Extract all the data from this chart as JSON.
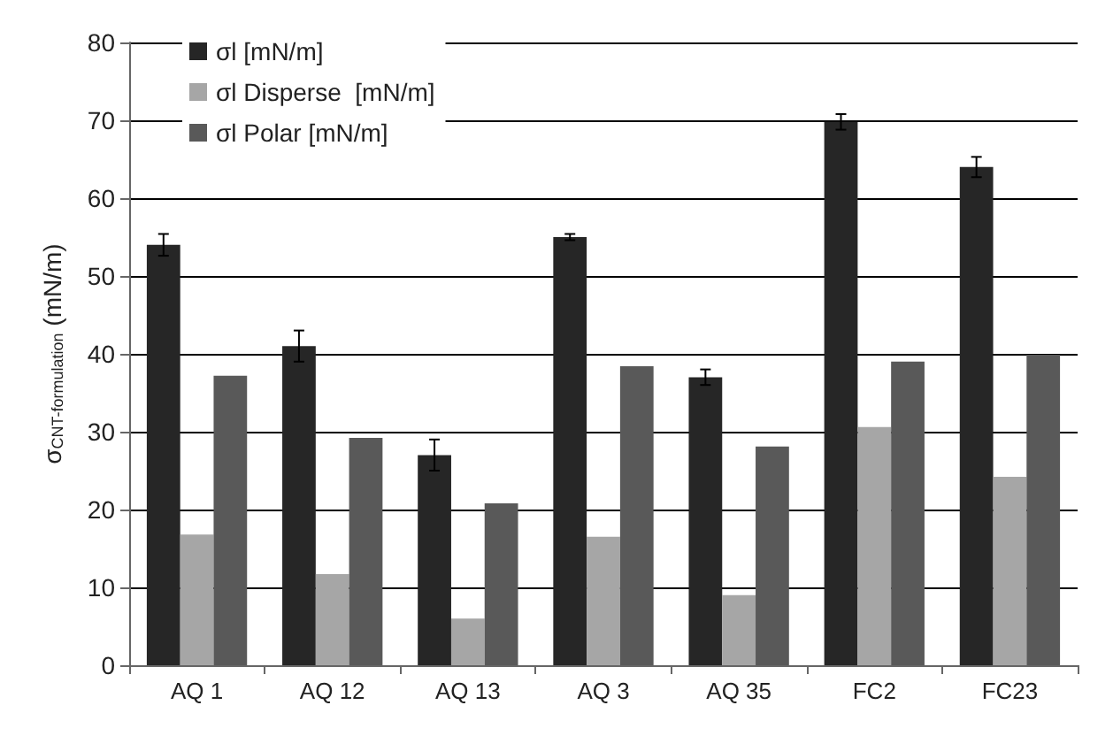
{
  "chart_data": {
    "type": "bar",
    "ylabel": "σ$_{CNT-formulation}$ (mN/m)",
    "categories": [
      "AQ 1",
      "AQ 12",
      "AQ 13",
      "AQ 3",
      "AQ 35",
      "FC2",
      "FC23"
    ],
    "series": [
      {
        "name": "σl [mN/m]",
        "color": "#262626",
        "values": [
          54,
          41,
          27,
          55,
          37,
          69.8,
          64
        ],
        "errors": [
          1.4,
          2,
          2,
          0.4,
          1,
          1,
          1.3
        ]
      },
      {
        "name": "σl Disperse  [mN/m]",
        "color": "#a6a6a6",
        "values": [
          16.8,
          11.7,
          6,
          16.5,
          9,
          30.6,
          24.2
        ]
      },
      {
        "name": "σl Polar [mN/m]",
        "color": "#595959",
        "values": [
          37.2,
          29.2,
          20.8,
          38.4,
          28.1,
          39,
          39.9
        ]
      }
    ],
    "ylim": [
      0,
      80
    ],
    "yticks": [
      0,
      10,
      20,
      30,
      40,
      50,
      60,
      70,
      80
    ],
    "grid": "y",
    "legend": "top left"
  }
}
